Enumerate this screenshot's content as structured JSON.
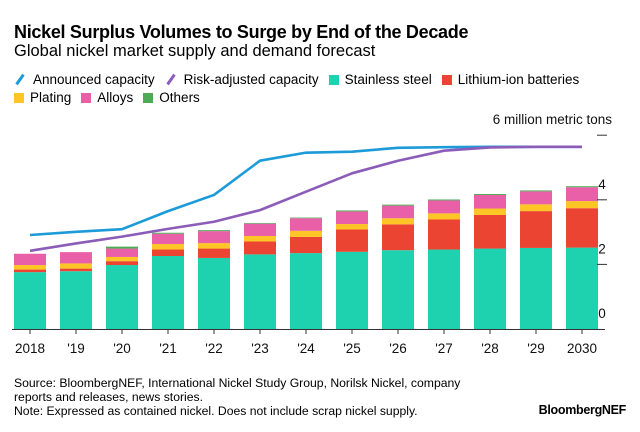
{
  "chart_data": {
    "type": "bar",
    "title": "Nickel Surplus Volumes to Surge by End of the Decade",
    "subtitle": "Global nickel market supply and demand forecast",
    "categories": [
      "2018",
      "'19",
      "'20",
      "'21",
      "'22",
      "'23",
      "'24",
      "'25",
      "'26",
      "'27",
      "'28",
      "'29",
      "2030"
    ],
    "stacked": true,
    "ylabel": "million metric tons",
    "ylim": [
      0,
      6
    ],
    "yticks": [
      0,
      2,
      4,
      6
    ],
    "ytick_labels": [
      "0",
      "2",
      "4",
      "6  million metric tons"
    ],
    "grid": false,
    "legend_placement": "top",
    "series": [
      {
        "name": "Stainless steel",
        "type": "bar",
        "color": "#1ed2b0",
        "values": [
          1.76,
          1.79,
          1.98,
          2.26,
          2.2,
          2.31,
          2.35,
          2.39,
          2.44,
          2.46,
          2.49,
          2.51,
          2.52
        ]
      },
      {
        "name": "Lithium-ion batteries",
        "type": "bar",
        "color": "#eb4432",
        "values": [
          0.08,
          0.08,
          0.12,
          0.2,
          0.29,
          0.4,
          0.5,
          0.69,
          0.8,
          0.93,
          1.04,
          1.14,
          1.22
        ]
      },
      {
        "name": "Plating",
        "type": "bar",
        "color": "#fdc526",
        "values": [
          0.14,
          0.16,
          0.13,
          0.17,
          0.17,
          0.17,
          0.19,
          0.17,
          0.19,
          0.19,
          0.2,
          0.21,
          0.22
        ]
      },
      {
        "name": "Alloys",
        "type": "bar",
        "color": "#e960a8",
        "values": [
          0.35,
          0.35,
          0.26,
          0.32,
          0.37,
          0.38,
          0.39,
          0.39,
          0.39,
          0.4,
          0.42,
          0.4,
          0.43
        ]
      },
      {
        "name": "Others",
        "type": "bar",
        "color": "#4dab55",
        "values": [
          0.0,
          0.0,
          0.06,
          0.03,
          0.03,
          0.02,
          0.02,
          0.03,
          0.03,
          0.03,
          0.03,
          0.03,
          0.03
        ]
      },
      {
        "name": "Announced capacity",
        "type": "line",
        "color": "#1c9bd8",
        "values": [
          2.91,
          3.01,
          3.09,
          3.65,
          4.15,
          5.21,
          5.46,
          5.49,
          5.61,
          5.63,
          5.64,
          5.64,
          5.64
        ]
      },
      {
        "name": "Risk-adjusted capacity",
        "type": "line",
        "color": "#8b5cb8",
        "values": [
          2.42,
          2.65,
          2.86,
          3.1,
          3.32,
          3.68,
          4.25,
          4.82,
          5.21,
          5.52,
          5.62,
          5.64,
          5.64
        ]
      }
    ]
  },
  "legend": {
    "items": [
      {
        "label": "Announced capacity",
        "color": "#1c9bd8",
        "kind": "line"
      },
      {
        "label": "Risk-adjusted capacity",
        "color": "#8b5cb8",
        "kind": "line"
      },
      {
        "label": "Stainless steel",
        "color": "#1ed2b0",
        "kind": "box"
      },
      {
        "label": "Lithium-ion batteries",
        "color": "#eb4432",
        "kind": "box"
      },
      {
        "label": "Plating",
        "color": "#fdc526",
        "kind": "box"
      },
      {
        "label": "Alloys",
        "color": "#e960a8",
        "kind": "box"
      },
      {
        "label": "Others",
        "color": "#4dab55",
        "kind": "box"
      }
    ]
  },
  "footer": {
    "source_line1": "Source: BloombergNEF, International Nickel Study Group, Norilsk Nickel, company",
    "source_line2": "reports and releases, news stories.",
    "note": "Note: Expressed as contained nickel. Does not include scrap nickel supply.",
    "brand": "BloombergNEF"
  }
}
